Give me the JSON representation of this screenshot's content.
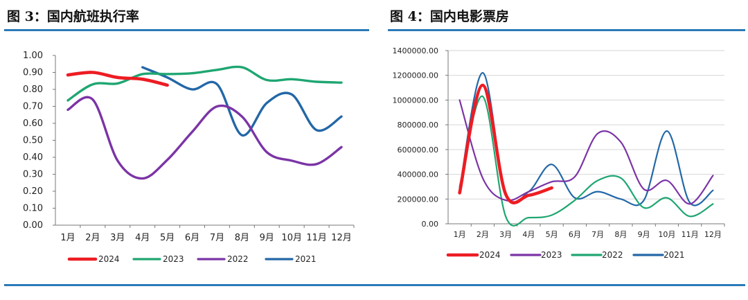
{
  "figures": [
    {
      "title": "图 3：国内航班执行率",
      "chart_data": {
        "type": "line",
        "title": "国内航班执行率",
        "categories": [
          "1月",
          "2月",
          "3月",
          "4月",
          "5月",
          "6月",
          "7月",
          "8月",
          "9月",
          "10月",
          "11月",
          "12月"
        ],
        "y_ticks": [
          "0.00",
          "0.10",
          "0.20",
          "0.30",
          "0.40",
          "0.50",
          "0.60",
          "0.70",
          "0.80",
          "0.90",
          "1.00"
        ],
        "ylim": [
          0,
          1
        ],
        "xlabel": "",
        "ylabel": "",
        "legend_position": "bottom",
        "series": [
          {
            "name": "2024",
            "color": "#ee1c23",
            "values": [
              0.885,
              0.9,
              0.87,
              0.86,
              0.825,
              null,
              null,
              null,
              null,
              null,
              null,
              null
            ]
          },
          {
            "name": "2023",
            "color": "#1fa672",
            "values": [
              0.735,
              0.83,
              0.835,
              0.89,
              0.89,
              0.895,
              0.915,
              0.93,
              0.855,
              0.86,
              0.845,
              0.84
            ]
          },
          {
            "name": "2022",
            "color": "#7b34a6",
            "values": [
              0.68,
              0.74,
              0.38,
              0.275,
              0.385,
              0.55,
              0.7,
              0.64,
              0.43,
              0.38,
              0.36,
              0.46
            ]
          },
          {
            "name": "2021",
            "color": "#2367a6",
            "values": [
              null,
              null,
              null,
              0.93,
              0.87,
              0.8,
              0.83,
              0.53,
              0.72,
              0.77,
              0.56,
              0.64
            ]
          }
        ]
      }
    },
    {
      "title": "图 4：国内电影票房",
      "chart_data": {
        "type": "line",
        "title": "国内电影票房",
        "categories": [
          "1月",
          "2月",
          "3月",
          "4月",
          "5月",
          "6月",
          "7月",
          "8月",
          "9月",
          "10月",
          "11月",
          "12月"
        ],
        "y_ticks": [
          "0.00",
          "200000.00",
          "400000.00",
          "600000.00",
          "800000.00",
          "1000000.00",
          "1200000.00",
          "1400000.00"
        ],
        "ylim": [
          0,
          1400000
        ],
        "xlabel": "",
        "ylabel": "",
        "legend_position": "bottom",
        "series": [
          {
            "name": "2024",
            "color": "#ee1c23",
            "values": [
              250000,
              1120000,
              240000,
              230000,
              290000,
              null,
              null,
              null,
              null,
              null,
              null,
              null
            ]
          },
          {
            "name": "2023",
            "color": "#7b34a6",
            "values": [
              1000000,
              370000,
              190000,
              260000,
              340000,
              380000,
              730000,
              660000,
              280000,
              350000,
              160000,
              390000
            ]
          },
          {
            "name": "2022",
            "color": "#1fa672",
            "values": [
              300000,
              1030000,
              60000,
              50000,
              70000,
              190000,
              350000,
              370000,
              130000,
              210000,
              60000,
              160000
            ]
          },
          {
            "name": "2021",
            "color": "#2367a6",
            "values": [
              280000,
              1220000,
              240000,
              260000,
              480000,
              210000,
              260000,
              200000,
              190000,
              750000,
              170000,
              270000
            ]
          }
        ]
      }
    }
  ]
}
